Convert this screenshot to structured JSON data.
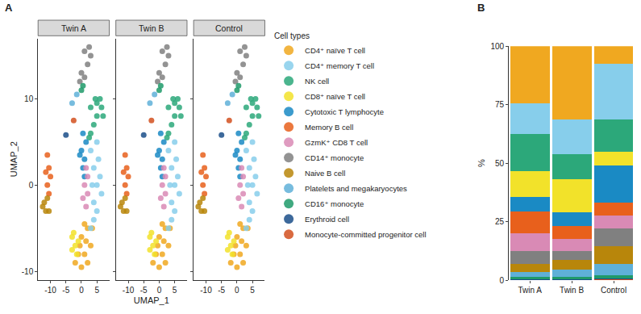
{
  "chart_data": [
    {
      "type": "scatter",
      "panel": "A",
      "facets": [
        "Twin A",
        "Twin B",
        "Control"
      ],
      "xlabel": "UMAP_1",
      "ylabel": "UMAP_2",
      "legend_title": "Cell types",
      "xlim": [
        -14,
        9
      ],
      "ylim": [
        -11,
        17
      ],
      "xticks": [
        -10,
        -5,
        0,
        5
      ],
      "yticks": [
        -10,
        0,
        10
      ],
      "series": [
        {
          "name": "CD4⁺ naïve T cell",
          "color": "#f0a820",
          "x": [
            0,
            1,
            2,
            -1,
            3,
            0,
            2,
            -2,
            1,
            3.5,
            -0.5,
            1.5
          ],
          "y": [
            -6,
            -8,
            -9,
            -8,
            -7,
            -9.5,
            -5,
            -9,
            -4.5,
            -5,
            -7,
            -6.5
          ]
        },
        {
          "name": "CD4⁺ memory T cell",
          "color": "#87ceeb",
          "x": [
            3,
            4,
            5,
            4,
            5,
            3,
            6,
            4,
            5.5,
            6.5,
            3.5,
            5
          ],
          "y": [
            4,
            2,
            0,
            -2,
            -3,
            -5,
            1,
            -4,
            3,
            -1,
            0,
            5
          ]
        },
        {
          "name": "NK cell",
          "color": "#2ca87a",
          "x": [
            3,
            5,
            6.5,
            7,
            4,
            3,
            5,
            2.5,
            6,
            4.5
          ],
          "y": [
            9,
            9.5,
            9,
            8,
            7,
            6,
            8,
            5.5,
            10,
            10
          ]
        },
        {
          "name": "CD8⁺ naïve T cell",
          "color": "#f2e22a",
          "x": [
            -3,
            -2,
            -1,
            -3,
            -2.5,
            -1.5
          ],
          "y": [
            -6,
            -7,
            -6.5,
            -7.5,
            -5.5,
            -8
          ]
        },
        {
          "name": "Cytotoxic T lymphocyte",
          "color": "#1a8ac4",
          "x": [
            0,
            1,
            0.5,
            1,
            -0.5,
            1.5,
            0.5
          ],
          "y": [
            4,
            3,
            2,
            1,
            3.5,
            5,
            6
          ]
        },
        {
          "name": "Memory B cell",
          "color": "#e8601c",
          "x": [
            -11,
            -10.5,
            -11,
            -10,
            -10.5,
            -11.5
          ],
          "y": [
            3.5,
            2,
            0,
            1,
            -1,
            1.5
          ]
        },
        {
          "name": "GzmK⁺ CD8 T cell",
          "color": "#d98ab5",
          "x": [
            1.5,
            2,
            1,
            2,
            1.5,
            0.5
          ],
          "y": [
            2,
            1,
            0,
            -1,
            -2.5,
            -1.5
          ]
        },
        {
          "name": "CD14⁺ monocyte",
          "color": "#808080",
          "x": [
            1,
            2.5,
            0,
            -0.5,
            1,
            2,
            3
          ],
          "y": [
            15.5,
            16,
            13,
            12,
            12.5,
            14,
            15
          ]
        },
        {
          "name": "Naive B cell",
          "color": "#b8860b",
          "x": [
            -12,
            -12.5,
            -11,
            -10.5,
            -11.5
          ],
          "y": [
            -2,
            -2.5,
            -1.5,
            -3,
            -3
          ]
        },
        {
          "name": "Platelets and megakaryocytes",
          "color": "#5fb0d8",
          "x": [
            -3,
            -1.5
          ],
          "y": [
            9.5,
            10.5
          ]
        },
        {
          "name": "CD16⁺ monocyte",
          "color": "#1f9a6a",
          "x": [
            0,
            0.5
          ],
          "y": [
            11,
            11.5
          ]
        },
        {
          "name": "Erythroid cell",
          "color": "#1b4f8a",
          "x": [
            -5
          ],
          "y": [
            5.8
          ]
        },
        {
          "name": "Monocyte-committed progenitor cell",
          "color": "#d2501e",
          "x": [
            -2.5
          ],
          "y": [
            7.5
          ]
        }
      ]
    },
    {
      "type": "bar",
      "panel": "B",
      "stacked": true,
      "ylabel": "%",
      "categories": [
        "Twin A",
        "Twin B",
        "Control"
      ],
      "ylim": [
        0,
        100
      ],
      "yticks": [
        0,
        25,
        50,
        75,
        100
      ],
      "series": [
        {
          "name": "Monocyte-committed progenitor cell",
          "color": "#d2501e",
          "values": [
            0.2,
            0.2,
            0.3
          ]
        },
        {
          "name": "Erythroid cell",
          "color": "#1b4f8a",
          "values": [
            0.3,
            0.3,
            0.5
          ]
        },
        {
          "name": "CD16⁺ monocyte",
          "color": "#1f9a6a",
          "values": [
            0.8,
            1,
            1.2
          ]
        },
        {
          "name": "Platelets and megakaryocytes",
          "color": "#5fb0d8",
          "values": [
            2.2,
            3,
            5
          ]
        },
        {
          "name": "Naive B cell",
          "color": "#b8860b",
          "values": [
            3.5,
            4,
            7.5
          ]
        },
        {
          "name": "CD14⁺ monocyte",
          "color": "#808080",
          "values": [
            5.5,
            4,
            7.5
          ]
        },
        {
          "name": "GzmK⁺ CD8 T cell",
          "color": "#d98ab5",
          "values": [
            7.5,
            5,
            5.5
          ]
        },
        {
          "name": "Memory B cell",
          "color": "#e8601c",
          "values": [
            9.5,
            5.5,
            5.5
          ]
        },
        {
          "name": "Cytotoxic T lymphocyte",
          "color": "#1a8ac4",
          "values": [
            6,
            6,
            16
          ]
        },
        {
          "name": "CD8⁺ naïve T cell",
          "color": "#f2e22a",
          "values": [
            11,
            14,
            6
          ]
        },
        {
          "name": "NK cell",
          "color": "#2ca87a",
          "values": [
            16,
            11,
            13.5
          ]
        },
        {
          "name": "CD4⁺ memory T cell",
          "color": "#87ceeb",
          "values": [
            13,
            14.5,
            24
          ]
        },
        {
          "name": "CD4⁺ naïve T cell",
          "color": "#f0a820",
          "values": [
            24.5,
            31.5,
            7.5
          ]
        }
      ]
    }
  ]
}
